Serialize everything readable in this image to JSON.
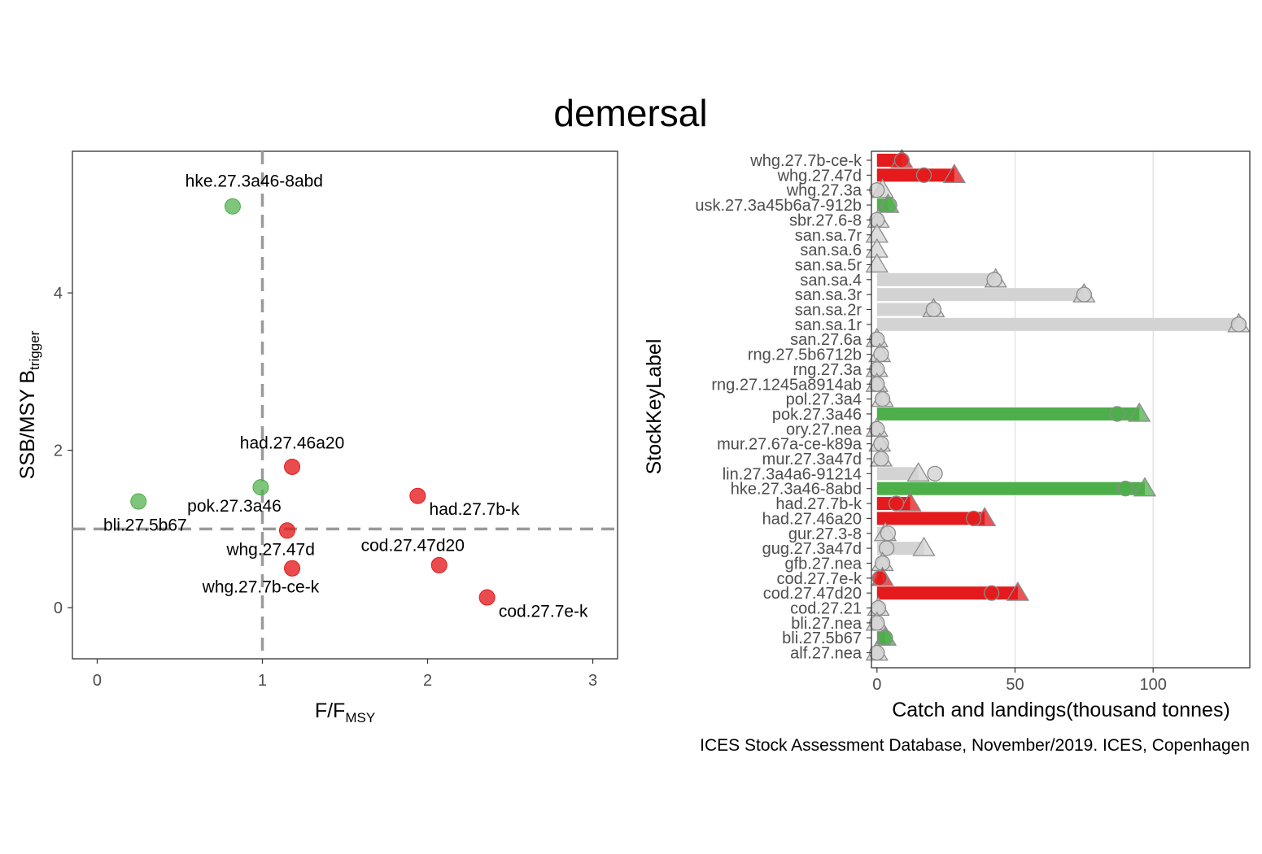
{
  "figure": {
    "title": "demersal",
    "caption": "ICES Stock Assessment Database, November/2019. ICES, Copenhagen"
  },
  "colors": {
    "red": "#e41a1c",
    "green": "#4daf4a",
    "grey": "#d3d3d3",
    "grey_outline": "#8c8c8c"
  },
  "chart_data": [
    {
      "type": "scatter",
      "xlabel_main": "F/F",
      "xlabel_sub": "MSY",
      "ylabel_main": "SSB/MSY B",
      "ylabel_sub": "trigger",
      "xlim": [
        -0.15,
        3.15
      ],
      "ylim": [
        -0.65,
        5.8
      ],
      "xticks": [
        0,
        1,
        2,
        3
      ],
      "yticks": [
        0,
        2,
        4
      ],
      "ref_x": 1,
      "ref_y": 1,
      "points": [
        {
          "label": "hke.27.3a46-8abd",
          "x": 0.82,
          "y": 5.1,
          "status": "green",
          "lx": 0.95,
          "ly": 5.35,
          "anchor": "middle"
        },
        {
          "label": "had.27.46a20",
          "x": 1.18,
          "y": 1.79,
          "status": "red",
          "lx": 1.18,
          "ly": 2.02,
          "anchor": "middle"
        },
        {
          "label": "pok.27.3a46",
          "x": 0.99,
          "y": 1.53,
          "status": "green",
          "lx": 0.83,
          "ly": 1.22,
          "anchor": "middle"
        },
        {
          "label": "had.27.7b-k",
          "x": 1.94,
          "y": 1.42,
          "status": "red",
          "lx": 2.01,
          "ly": 1.18,
          "anchor": "start"
        },
        {
          "label": "bli.27.5b67",
          "x": 0.25,
          "y": 1.35,
          "status": "green",
          "lx": 0.29,
          "ly": 0.98,
          "anchor": "middle"
        },
        {
          "label": "whg.27.47d",
          "x": 1.15,
          "y": 0.98,
          "status": "red",
          "lx": 1.05,
          "ly": 0.67,
          "anchor": "middle"
        },
        {
          "label": "cod.27.47d20",
          "x": 2.07,
          "y": 0.54,
          "status": "red",
          "lx": 1.91,
          "ly": 0.72,
          "anchor": "middle"
        },
        {
          "label": "whg.27.7b-ce-k",
          "x": 1.18,
          "y": 0.5,
          "status": "red",
          "lx": 0.99,
          "ly": 0.19,
          "anchor": "middle"
        },
        {
          "label": "cod.27.7e-k",
          "x": 2.36,
          "y": 0.13,
          "status": "red",
          "lx": 2.43,
          "ly": -0.12,
          "anchor": "start"
        }
      ]
    },
    {
      "type": "bar",
      "xlabel": "Catch and landings(thousand tonnes)",
      "ylabel": "StockKeyLabel",
      "xlim": [
        -2,
        135
      ],
      "xticks": [
        0,
        50,
        100
      ],
      "categories": [
        "whg.27.7b-ce-k",
        "whg.27.47d",
        "whg.27.3a",
        "usk.27.3a45b6a7-912b",
        "sbr.27.6-8",
        "san.sa.7r",
        "san.sa.6",
        "san.sa.5r",
        "san.sa.4",
        "san.sa.3r",
        "san.sa.2r",
        "san.sa.1r",
        "san.27.6a",
        "rng.27.5b6712b",
        "rng.27.3a",
        "rng.27.1245a8914ab",
        "pol.27.3a4",
        "pok.27.3a46",
        "ory.27.nea",
        "mur.27.67a-ce-k89a",
        "mur.27.3a47d",
        "lin.27.3a4a6-91214",
        "hke.27.3a46-8abd",
        "had.27.7b-k",
        "had.27.46a20",
        "gur.27.3-8",
        "gug.27.3a47d",
        "gfb.27.nea",
        "cod.27.7e-k",
        "cod.27.47d20",
        "cod.27.21",
        "bli.27.nea",
        "bli.27.5b67",
        "alf.27.nea"
      ],
      "status": [
        "red",
        "red",
        "grey",
        "green",
        "grey",
        "grey",
        "grey",
        "grey",
        "grey",
        "grey",
        "grey",
        "grey",
        "grey",
        "grey",
        "grey",
        "grey",
        "grey",
        "green",
        "grey",
        "grey",
        "grey",
        "grey",
        "green",
        "red",
        "red",
        "grey",
        "grey",
        "grey",
        "red",
        "red",
        "grey",
        "grey",
        "green",
        "grey"
      ],
      "catches": [
        9,
        28,
        2,
        4,
        0.5,
        0,
        0,
        0,
        43,
        75,
        20.5,
        131,
        0,
        1,
        0,
        0,
        2,
        95,
        0,
        1,
        1.5,
        15,
        97,
        12,
        39,
        3,
        17,
        2,
        2,
        51,
        0.5,
        0,
        3,
        0
      ],
      "landings": [
        9,
        17,
        0,
        4.5,
        0,
        null,
        null,
        null,
        42.5,
        75,
        20.5,
        131,
        0,
        1.5,
        0,
        0,
        2,
        87,
        0,
        1.5,
        1.5,
        21,
        90,
        7,
        35,
        4,
        3.5,
        2,
        1,
        41.5,
        0.5,
        0,
        3,
        0
      ]
    }
  ]
}
